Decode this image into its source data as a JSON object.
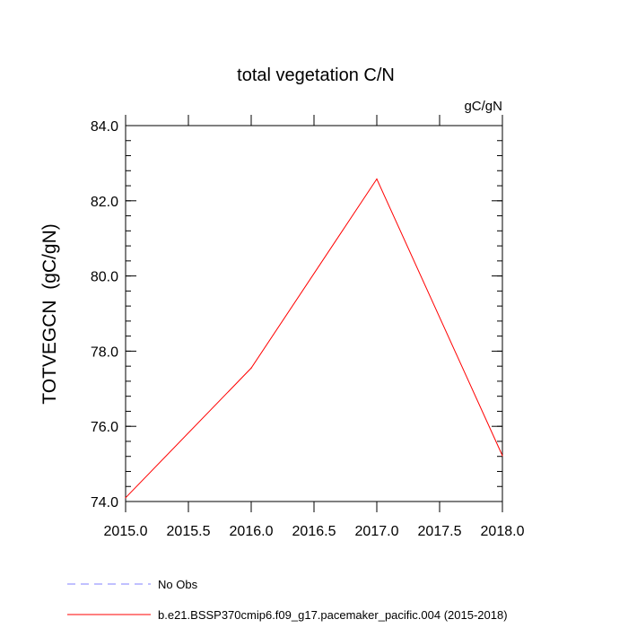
{
  "chart_data": {
    "type": "line",
    "title": "total vegetation C/N",
    "units_label": "gC/gN",
    "xlabel": "",
    "ylabel": "TOTVEGCN  (gC/gN)",
    "xlim": [
      2015.0,
      2018.0
    ],
    "ylim": [
      74.0,
      84.0
    ],
    "xticks": [
      "2015.0",
      "2015.5",
      "2016.0",
      "2016.5",
      "2017.0",
      "2017.5",
      "2018.0"
    ],
    "yticks": [
      "74.0",
      "76.0",
      "78.0",
      "80.0",
      "82.0",
      "84.0"
    ],
    "grid": false,
    "series": [
      {
        "name": "b.e21.BSSP370cmip6.f09_g17.pacemaker_pacific.004 (2015-2018)",
        "color": "#ff0000",
        "dash": "solid",
        "x": [
          2015.0,
          2016.0,
          2017.0,
          2018.0
        ],
        "y": [
          74.1,
          77.55,
          82.58,
          75.22
        ]
      }
    ],
    "legend": [
      {
        "label": "No Obs",
        "color": "#8080ff",
        "dash": "dashed"
      },
      {
        "label": "b.e21.BSSP370cmip6.f09_g17.pacemaker_pacific.004 (2015-2018)",
        "color": "#ff0000",
        "dash": "solid"
      }
    ],
    "legend_position": "bottom-left"
  }
}
